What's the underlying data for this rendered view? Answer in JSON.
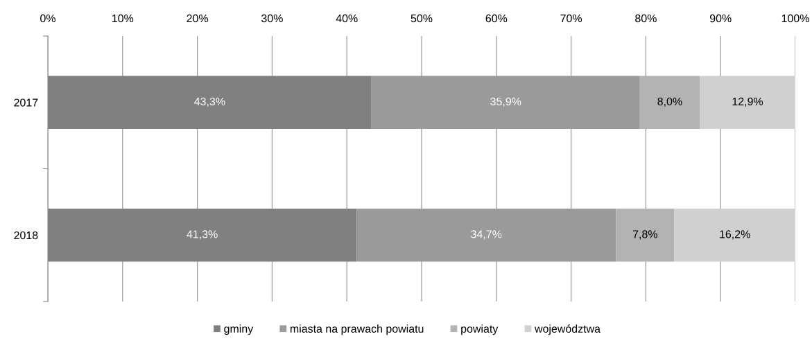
{
  "chart_data": {
    "type": "bar",
    "orientation": "horizontal",
    "stacked": true,
    "categories": [
      "2017",
      "2018"
    ],
    "series": [
      {
        "name": "gminy",
        "color": "#808080",
        "values": [
          43.3,
          41.3
        ],
        "value_labels": [
          "43,3%",
          "41,3%"
        ]
      },
      {
        "name": "miasta na prawach powiatu",
        "color": "#9a9a9a",
        "values": [
          35.9,
          34.7
        ],
        "value_labels": [
          "35,9%",
          "34,7%"
        ]
      },
      {
        "name": "powiaty",
        "color": "#b3b3b3",
        "values": [
          8.0,
          7.8
        ],
        "value_labels": [
          "8,0%",
          "7,8%"
        ]
      },
      {
        "name": "województwa",
        "color": "#d0d0d0",
        "values": [
          12.9,
          16.2
        ],
        "value_labels": [
          "12,9%",
          "16,2%"
        ]
      }
    ],
    "xlim": [
      0,
      100
    ],
    "xticks": [
      {
        "value": 0,
        "label": "0%"
      },
      {
        "value": 10,
        "label": "10%"
      },
      {
        "value": 20,
        "label": "20%"
      },
      {
        "value": 30,
        "label": "30%"
      },
      {
        "value": 40,
        "label": "40%"
      },
      {
        "value": 50,
        "label": "50%"
      },
      {
        "value": 60,
        "label": "60%"
      },
      {
        "value": 70,
        "label": "70%"
      },
      {
        "value": 80,
        "label": "80%"
      },
      {
        "value": 90,
        "label": "90%"
      },
      {
        "value": 100,
        "label": "100%"
      }
    ],
    "grid": "x",
    "legend": "bottom"
  }
}
